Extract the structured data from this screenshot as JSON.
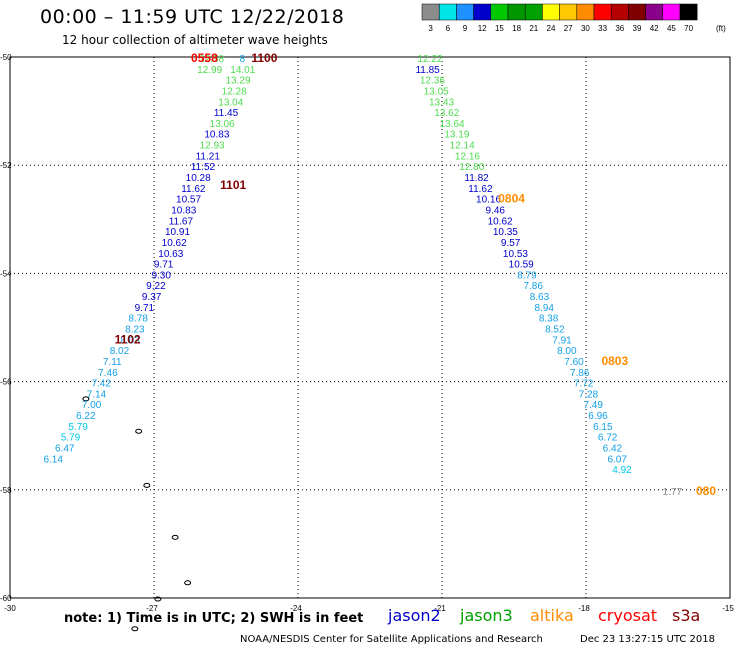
{
  "header": {
    "title": "00:00 – 11:59 UTC 12/22/2018",
    "subtitle": "12 hour collection of altimeter wave heights"
  },
  "colorbar": {
    "unit_label": "(ft)",
    "bins": [
      {
        "label": "3",
        "color": "#8c8c8c"
      },
      {
        "label": "6",
        "color": "#00e6e6"
      },
      {
        "label": "9",
        "color": "#1e90ff"
      },
      {
        "label": "12",
        "color": "#0000cd"
      },
      {
        "label": "15",
        "color": "#00c800"
      },
      {
        "label": "18",
        "color": "#009600"
      },
      {
        "label": "21",
        "color": "#00a000"
      },
      {
        "label": "24",
        "color": "#ffff00"
      },
      {
        "label": "27",
        "color": "#ffc800"
      },
      {
        "label": "30",
        "color": "#ff8c00"
      },
      {
        "label": "33",
        "color": "#ff0000"
      },
      {
        "label": "36",
        "color": "#b40000"
      },
      {
        "label": "39",
        "color": "#800000"
      },
      {
        "label": "42",
        "color": "#8b008b"
      },
      {
        "label": "45",
        "color": "#ff00ff"
      },
      {
        "label": "70",
        "color": "#000000"
      }
    ]
  },
  "footer": {
    "note": "note: 1) Time is in UTC; 2) SWH is in feet",
    "satellites": [
      {
        "name": "jason2",
        "color": "#0000cd"
      },
      {
        "name": "jason3",
        "color": "#00a000"
      },
      {
        "name": "altika",
        "color": "#ff8c00"
      },
      {
        "name": "cryosat",
        "color": "#ff0000"
      },
      {
        "name": "s3a",
        "color": "#800000"
      }
    ],
    "credit": "NOAA/NESDIS Center for Satellite Applications and Research",
    "timestamp": "Dec 23 13:27:15 UTC 2018"
  },
  "chart_data": {
    "type": "scatter",
    "title": "00:00 – 11:59 UTC 12/22/2018",
    "xlim": [
      -30,
      -15
    ],
    "ylim": [
      -60,
      -50
    ],
    "x_ticks": [
      "-30",
      "-27",
      "-24",
      "-21",
      "-18",
      "-15"
    ],
    "y_ticks": [
      "-50",
      "-52",
      "-54",
      "-56",
      "-58",
      "-60"
    ],
    "gridlines_lon": [
      -27,
      -24,
      -21,
      -18
    ],
    "gridlines_lat": [
      -50,
      -52,
      -54,
      -56,
      -58
    ],
    "series": [
      {
        "name": "jason2",
        "points": [
          {
            "lon": -25.8,
            "lat": -50.0,
            "swh": "12.58"
          },
          {
            "lon": -25.84,
            "lat": -50.2,
            "swh": "12.99"
          },
          {
            "lon": -25.16,
            "lat": -50.0,
            "swh": "8"
          },
          {
            "lon": -25.15,
            "lat": -50.2,
            "swh": "14.01"
          },
          {
            "lon": -25.25,
            "lat": -50.4,
            "swh": "13.29"
          },
          {
            "lon": -25.33,
            "lat": -50.6,
            "swh": "12.28"
          },
          {
            "lon": -25.4,
            "lat": -50.8,
            "swh": "13.04"
          },
          {
            "lon": -25.5,
            "lat": -51.0,
            "swh": "11.45"
          },
          {
            "lon": -25.58,
            "lat": -51.2,
            "swh": "13.06"
          },
          {
            "lon": -25.69,
            "lat": -51.4,
            "swh": "10.83"
          },
          {
            "lon": -25.79,
            "lat": -51.6,
            "swh": "12.93"
          },
          {
            "lon": -25.88,
            "lat": -51.8,
            "swh": "11.21"
          },
          {
            "lon": -25.98,
            "lat": -52.0,
            "swh": "11.52"
          },
          {
            "lon": -26.08,
            "lat": -52.2,
            "swh": "10.28"
          },
          {
            "lon": -26.18,
            "lat": -52.4,
            "swh": "11.62"
          },
          {
            "lon": -26.28,
            "lat": -52.6,
            "swh": "10.57"
          },
          {
            "lon": -26.38,
            "lat": -52.8,
            "swh": "10.83"
          },
          {
            "lon": -26.44,
            "lat": -53.0,
            "swh": "11.67"
          },
          {
            "lon": -26.51,
            "lat": -53.2,
            "swh": "10.91"
          },
          {
            "lon": -26.58,
            "lat": -53.4,
            "swh": "10.62"
          },
          {
            "lon": -26.65,
            "lat": -53.6,
            "swh": "10.63"
          },
          {
            "lon": -26.8,
            "lat": -53.8,
            "swh": "9.71"
          },
          {
            "lon": -26.85,
            "lat": -54.0,
            "swh": "9.30"
          },
          {
            "lon": -26.96,
            "lat": -54.2,
            "swh": "9.22"
          },
          {
            "lon": -27.05,
            "lat": -54.4,
            "swh": "9.37"
          },
          {
            "lon": -27.2,
            "lat": -54.6,
            "swh": "9.71"
          },
          {
            "lon": -27.33,
            "lat": -54.8,
            "swh": "8.78"
          },
          {
            "lon": -27.4,
            "lat": -55.0,
            "swh": "8.23"
          },
          {
            "lon": -27.5,
            "lat": -55.2,
            "swh": "8.03"
          },
          {
            "lon": -27.72,
            "lat": -55.4,
            "swh": "8.02"
          },
          {
            "lon": -27.87,
            "lat": -55.6,
            "swh": "7.11"
          },
          {
            "lon": -27.96,
            "lat": -55.8,
            "swh": "7.46"
          },
          {
            "lon": -28.1,
            "lat": -56.0,
            "swh": "7.42"
          },
          {
            "lon": -28.2,
            "lat": -56.2,
            "swh": "7.14"
          },
          {
            "lon": -28.3,
            "lat": -56.4,
            "swh": "7.00"
          },
          {
            "lon": -28.42,
            "lat": -56.6,
            "swh": "6.22"
          },
          {
            "lon": -28.58,
            "lat": -56.8,
            "swh": "5.79"
          },
          {
            "lon": -28.74,
            "lat": -57.0,
            "swh": "5.79"
          },
          {
            "lon": -28.86,
            "lat": -57.2,
            "swh": "6.47"
          },
          {
            "lon": -29.1,
            "lat": -57.4,
            "swh": "6.14"
          },
          {
            "lon": -21.25,
            "lat": -50.0,
            "swh": "12.22"
          },
          {
            "lon": -21.3,
            "lat": -50.2,
            "swh": "11.85"
          },
          {
            "lon": -21.2,
            "lat": -50.4,
            "swh": "12.36"
          },
          {
            "lon": -21.12,
            "lat": -50.6,
            "swh": "13.05"
          },
          {
            "lon": -21.01,
            "lat": -50.8,
            "swh": "13.43"
          },
          {
            "lon": -20.9,
            "lat": -51.0,
            "swh": "13.62"
          },
          {
            "lon": -20.79,
            "lat": -51.2,
            "swh": "13.64"
          },
          {
            "lon": -20.69,
            "lat": -51.4,
            "swh": "13.19"
          },
          {
            "lon": -20.58,
            "lat": -51.6,
            "swh": "12.14"
          },
          {
            "lon": -20.47,
            "lat": -51.8,
            "swh": "12.16"
          },
          {
            "lon": -20.38,
            "lat": -52.0,
            "swh": "12.80"
          },
          {
            "lon": -20.28,
            "lat": -52.2,
            "swh": "11.82"
          },
          {
            "lon": -20.2,
            "lat": -52.4,
            "swh": "11.62"
          },
          {
            "lon": -20.03,
            "lat": -52.6,
            "swh": "10.16"
          },
          {
            "lon": -19.89,
            "lat": -52.8,
            "swh": "9.46"
          },
          {
            "lon": -19.79,
            "lat": -53.0,
            "swh": "10.62"
          },
          {
            "lon": -19.68,
            "lat": -53.2,
            "swh": "10.35"
          },
          {
            "lon": -19.57,
            "lat": -53.4,
            "swh": "9.57"
          },
          {
            "lon": -19.47,
            "lat": -53.6,
            "swh": "10.53"
          },
          {
            "lon": -19.35,
            "lat": -53.8,
            "swh": "10.59"
          },
          {
            "lon": -19.23,
            "lat": -54.0,
            "swh": "8.79"
          },
          {
            "lon": -19.1,
            "lat": -54.2,
            "swh": "7.86"
          },
          {
            "lon": -18.97,
            "lat": -54.4,
            "swh": "8.63"
          },
          {
            "lon": -18.87,
            "lat": -54.6,
            "swh": "8.94"
          },
          {
            "lon": -18.78,
            "lat": -54.8,
            "swh": "8.38"
          },
          {
            "lon": -18.65,
            "lat": -55.0,
            "swh": "8.52"
          },
          {
            "lon": -18.5,
            "lat": -55.2,
            "swh": "7.91"
          },
          {
            "lon": -18.4,
            "lat": -55.4,
            "swh": "8.00"
          },
          {
            "lon": -18.25,
            "lat": -55.6,
            "swh": "7.60"
          },
          {
            "lon": -18.13,
            "lat": -55.8,
            "swh": "7.86"
          },
          {
            "lon": -18.05,
            "lat": -56.0,
            "swh": "7.72"
          },
          {
            "lon": -17.95,
            "lat": -56.2,
            "swh": "7.28"
          },
          {
            "lon": -17.85,
            "lat": -56.4,
            "swh": "7.49"
          },
          {
            "lon": -17.75,
            "lat": -56.6,
            "swh": "6.96"
          },
          {
            "lon": -17.65,
            "lat": -56.8,
            "swh": "6.15"
          },
          {
            "lon": -17.55,
            "lat": -57.0,
            "swh": "6.72"
          },
          {
            "lon": -17.45,
            "lat": -57.2,
            "swh": "6.42"
          },
          {
            "lon": -17.35,
            "lat": -57.4,
            "swh": "6.07"
          },
          {
            "lon": -17.25,
            "lat": -57.6,
            "swh": "4.92"
          },
          {
            "lon": -16.2,
            "lat": -58.0,
            "swh": "1.77"
          }
        ]
      },
      {
        "name": "pass_labels",
        "points": [
          {
            "lon": -25.95,
            "lat": -50.0,
            "label": "0558",
            "color": "#ff0000"
          },
          {
            "lon": -24.7,
            "lat": -50.0,
            "label": "1100",
            "color": "#800000"
          },
          {
            "lon": -25.35,
            "lat": -52.35,
            "label": "1101",
            "color": "#800000"
          },
          {
            "lon": -27.55,
            "lat": -55.2,
            "label": "1102",
            "color": "#800000"
          },
          {
            "lon": -19.55,
            "lat": -52.6,
            "label": "0804",
            "color": "#ff8c00"
          },
          {
            "lon": -17.4,
            "lat": -55.6,
            "label": "0803",
            "color": "#ff8c00"
          },
          {
            "lon": -15.5,
            "lat": -58.0,
            "label": "080",
            "color": "#ff8c00"
          }
        ]
      }
    ]
  }
}
